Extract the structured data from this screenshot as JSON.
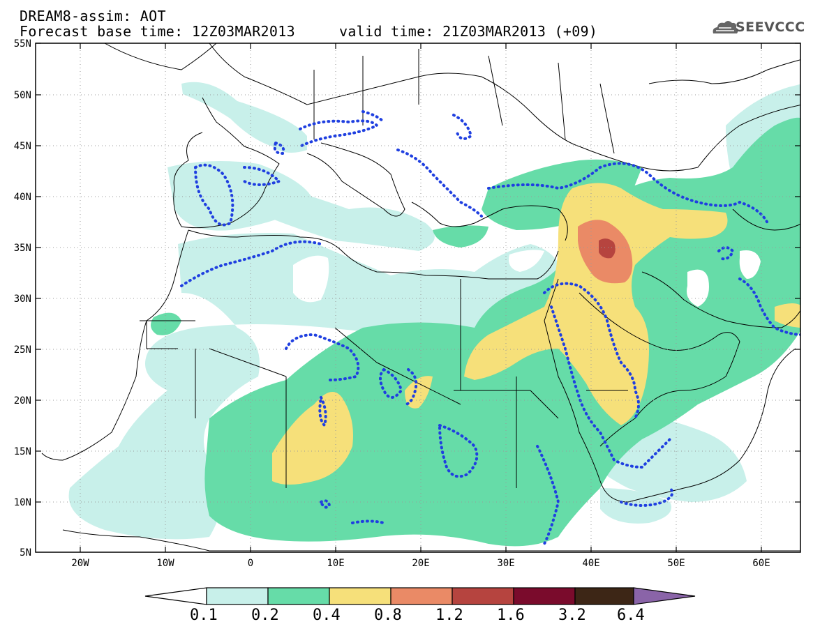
{
  "header": {
    "title": "DREAM8-assim: AOT",
    "base_time": "Forecast base time: 12Z03MAR2013",
    "valid_time": "valid time: 21Z03MAR2013 (+09)"
  },
  "logo": {
    "text": "SEEVCCC",
    "icon": "cloud-icon"
  },
  "map": {
    "lat_labels": [
      "55N",
      "50N",
      "45N",
      "40N",
      "35N",
      "30N",
      "25N",
      "20N",
      "15N",
      "10N",
      "5N"
    ],
    "lon_labels": [
      "20W",
      "10W",
      "0",
      "10E",
      "20E",
      "30E",
      "40E",
      "50E",
      "60E"
    ],
    "grid": true,
    "dust_contour_color": "#1f3fe0"
  },
  "colorbar": {
    "levels": [
      "0.1",
      "0.2",
      "0.4",
      "0.8",
      "1.2",
      "1.6",
      "3.2",
      "6.4"
    ],
    "colors": [
      "#ffffff",
      "#c8f0ea",
      "#66dca8",
      "#f6e07a",
      "#ea8a66",
      "#b6443f",
      "#7a0b2c",
      "#3d2616",
      "#8a64a8"
    ]
  }
}
